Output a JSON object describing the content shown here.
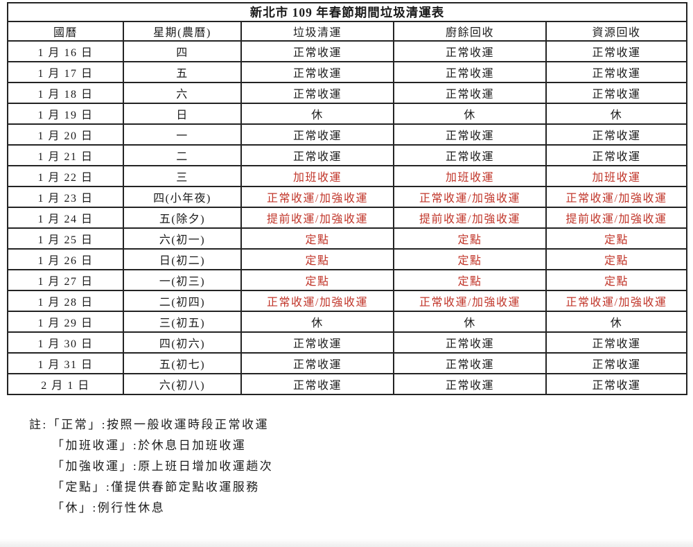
{
  "colors": {
    "text": "#1a1a1a",
    "highlight_red": "#c03428",
    "border": "#232323"
  },
  "table": {
    "title": "新北市 109 年春節期間垃圾清運表",
    "headers": [
      "國曆",
      "星期(農曆)",
      "垃圾清運",
      "廚餘回收",
      "資源回收"
    ],
    "rows": [
      {
        "date": "1 月 16 日",
        "weekday": "四",
        "garbage": "正常收運",
        "kitchen": "正常收運",
        "recycle": "正常收運",
        "highlight": false
      },
      {
        "date": "1 月 17 日",
        "weekday": "五",
        "garbage": "正常收運",
        "kitchen": "正常收運",
        "recycle": "正常收運",
        "highlight": false
      },
      {
        "date": "1 月 18 日",
        "weekday": "六",
        "garbage": "正常收運",
        "kitchen": "正常收運",
        "recycle": "正常收運",
        "highlight": false
      },
      {
        "date": "1 月 19 日",
        "weekday": "日",
        "garbage": "休",
        "kitchen": "休",
        "recycle": "休",
        "highlight": false
      },
      {
        "date": "1 月 20 日",
        "weekday": "一",
        "garbage": "正常收運",
        "kitchen": "正常收運",
        "recycle": "正常收運",
        "highlight": false
      },
      {
        "date": "1 月 21 日",
        "weekday": "二",
        "garbage": "正常收運",
        "kitchen": "正常收運",
        "recycle": "正常收運",
        "highlight": false
      },
      {
        "date": "1 月 22 日",
        "weekday": "三",
        "garbage": "加班收運",
        "kitchen": "加班收運",
        "recycle": "加班收運",
        "highlight": true
      },
      {
        "date": "1 月 23 日",
        "weekday": "四(小年夜)",
        "garbage": "正常收運/加強收運",
        "kitchen": "正常收運/加強收運",
        "recycle": "正常收運/加強收運",
        "highlight": true
      },
      {
        "date": "1 月 24 日",
        "weekday": "五(除夕)",
        "garbage": "提前收運/加強收運",
        "kitchen": "提前收運/加強收運",
        "recycle": "提前收運/加強收運",
        "highlight": true
      },
      {
        "date": "1 月 25 日",
        "weekday": "六(初一)",
        "garbage": "定點",
        "kitchen": "定點",
        "recycle": "定點",
        "highlight": true
      },
      {
        "date": "1 月 26 日",
        "weekday": "日(初二)",
        "garbage": "定點",
        "kitchen": "定點",
        "recycle": "定點",
        "highlight": true
      },
      {
        "date": "1 月 27 日",
        "weekday": "一(初三)",
        "garbage": "定點",
        "kitchen": "定點",
        "recycle": "定點",
        "highlight": true
      },
      {
        "date": "1 月 28 日",
        "weekday": "二(初四)",
        "garbage": "正常收運/加強收運",
        "kitchen": "正常收運/加強收運",
        "recycle": "正常收運/加強收運",
        "highlight": true
      },
      {
        "date": "1 月 29 日",
        "weekday": "三(初五)",
        "garbage": "休",
        "kitchen": "休",
        "recycle": "休",
        "highlight": false
      },
      {
        "date": "1 月 30 日",
        "weekday": "四(初六)",
        "garbage": "正常收運",
        "kitchen": "正常收運",
        "recycle": "正常收運",
        "highlight": false
      },
      {
        "date": "1 月 31 日",
        "weekday": "五(初七)",
        "garbage": "正常收運",
        "kitchen": "正常收運",
        "recycle": "正常收運",
        "highlight": false
      },
      {
        "date": "2 月 1 日",
        "weekday": "六(初八)",
        "garbage": "正常收運",
        "kitchen": "正常收運",
        "recycle": "正常收運",
        "highlight": false
      }
    ]
  },
  "notes": {
    "prefix": "註:",
    "lines": [
      "「正常」:按照一般收運時段正常收運",
      "「加班收運」:於休息日加班收運",
      "「加強收運」:原上班日增加收運趟次",
      "「定點」:僅提供春節定點收運服務",
      "「休」:例行性休息"
    ]
  }
}
